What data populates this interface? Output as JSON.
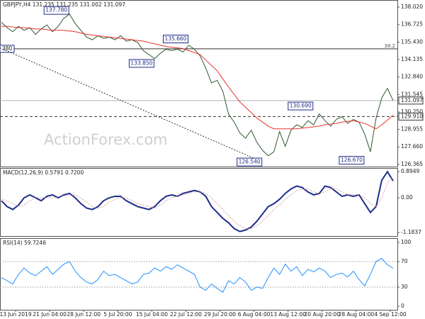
{
  "chart_data": [
    {
      "type": "line",
      "title": "GBPJPY,H4  131.235 131.235 131.002 131.097",
      "watermark": "ActionForex.com",
      "xlim": [
        -0.25,
        69.75
      ],
      "ylim": [
        126.2,
        138.55
      ],
      "yticks": [
        {
          "value": 138.02,
          "label": "138.020"
        },
        136.725,
        {
          "value": 135.43,
          "label": "135.430"
        },
        134.135,
        {
          "value": 132.84,
          "label": "132.840"
        },
        131.545,
        {
          "value": 130.25,
          "label": "130.250"
        },
        128.955,
        {
          "value": 127.66,
          "label": "127.660"
        },
        126.365
      ],
      "series": [
        {
          "color": "#2f5a2f",
          "width": 1,
          "style": "solid",
          "values": [
            136.9,
            136.5,
            136.2,
            136.6,
            136.3,
            136.5,
            136.0,
            136.4,
            136.7,
            136.2,
            136.6,
            137.2,
            137.5,
            136.8,
            136.3,
            135.8,
            135.6,
            135.9,
            135.7,
            135.8,
            135.6,
            135.9,
            135.5,
            135.6,
            135.4,
            134.8,
            134.5,
            134.2,
            134.6,
            134.9,
            134.8,
            134.9,
            134.7,
            135.2,
            134.9,
            134.4,
            133.5,
            132.4,
            132.6,
            131.8,
            130.1,
            129.5,
            128.7,
            128.3,
            128.9,
            128.0,
            127.4,
            127.0,
            127.3,
            128.8,
            127.7,
            128.9,
            129.3,
            129.1,
            129.6,
            129.3,
            130.1,
            129.6,
            129.2,
            129.7,
            129.9,
            129.4,
            129.7,
            129.5,
            128.6,
            127.3,
            129.8,
            131.3,
            132.0,
            131.097
          ]
        },
        {
          "color": "#e8322e",
          "width": 1,
          "style": "solid",
          "values": [
            136.6,
            136.6,
            136.55,
            136.5,
            136.5,
            136.45,
            136.4,
            136.4,
            136.35,
            136.3,
            136.3,
            136.3,
            136.25,
            136.2,
            136.1,
            136.0,
            135.95,
            135.9,
            135.85,
            135.8,
            135.75,
            135.7,
            135.65,
            135.6,
            135.55,
            135.5,
            135.4,
            135.3,
            135.2,
            135.1,
            135.05,
            135.0,
            134.95,
            134.8,
            134.65,
            134.5,
            134.1,
            133.7,
            133.3,
            132.7,
            132.1,
            131.55,
            131.0,
            130.6,
            130.2,
            129.8,
            129.5,
            129.2,
            129.0,
            129.0,
            129.0,
            129.0,
            129.0,
            129.05,
            129.1,
            129.15,
            129.2,
            129.3,
            129.35,
            129.4,
            129.5,
            129.55,
            129.6,
            129.5,
            129.4,
            129.2,
            129.0,
            129.3,
            129.65,
            130.0
          ]
        }
      ],
      "levels": [
        {
          "value": 134.93,
          "color": "#333333",
          "style": "solid",
          "label": "38.2",
          "left_label": "380"
        },
        {
          "value": 131.097,
          "color": "#b0b0b0",
          "style": "solid"
        },
        {
          "value": 129.91,
          "color": "#333333",
          "style": "dashed"
        }
      ],
      "price_labels": [
        {
          "value": 131.097,
          "label": "131.097"
        },
        {
          "value": 129.91,
          "label": "129.910"
        }
      ],
      "trendline": {
        "x": [
          -0.25,
          46
        ],
        "y": [
          135.0,
          126.54
        ]
      },
      "annotations": [
        {
          "label": "137.780",
          "value": 137.78,
          "x": 12
        },
        {
          "label": "135.660",
          "value": 135.66,
          "x": 33
        },
        {
          "label": "133.850",
          "value": 133.85,
          "x": 27
        },
        {
          "label": "130.690",
          "value": 130.69,
          "x": 55
        },
        {
          "label": "126.540",
          "value": 126.54,
          "x": 46
        },
        {
          "label": "126.670",
          "value": 126.67,
          "x": 64
        }
      ]
    },
    {
      "type": "line",
      "title": "MACD(12,26,9) 0.5791 0.7200",
      "xlim": [
        -0.25,
        69.75
      ],
      "ylim": [
        -1.305,
        1.016
      ],
      "yticks": [
        0.8949,
        {
          "value": 0,
          "label": "0.00"
        },
        -1.1837
      ],
      "series": [
        {
          "color": "#1f2d8a",
          "width": 2,
          "style": "solid",
          "values": [
            -0.1,
            -0.3,
            -0.4,
            -0.25,
            0.0,
            0.1,
            0.0,
            -0.1,
            0.05,
            0.1,
            0.0,
            0.1,
            0.15,
            0.0,
            -0.2,
            -0.35,
            -0.4,
            -0.3,
            -0.1,
            0.0,
            0.05,
            0.05,
            -0.1,
            -0.2,
            -0.3,
            -0.35,
            -0.4,
            -0.3,
            -0.1,
            0.05,
            0.1,
            0.05,
            0.15,
            0.2,
            0.25,
            0.2,
            0.05,
            -0.3,
            -0.5,
            -0.7,
            -0.85,
            -1.05,
            -1.15,
            -1.1,
            -1.0,
            -0.8,
            -0.55,
            -0.3,
            -0.2,
            -0.05,
            0.15,
            0.3,
            0.4,
            0.35,
            0.2,
            0.1,
            0.15,
            0.4,
            0.35,
            0.2,
            0.05,
            0.1,
            0.05,
            0.1,
            -0.2,
            -0.5,
            -0.3,
            0.6,
            0.89,
            0.5791
          ]
        },
        {
          "color": "#d08a8a",
          "width": 1,
          "style": "dotted",
          "values": [
            -0.05,
            -0.1,
            -0.2,
            -0.3,
            -0.25,
            -0.1,
            0.0,
            0.0,
            0.0,
            0.0,
            0.05,
            0.05,
            0.1,
            0.1,
            0.0,
            -0.15,
            -0.3,
            -0.35,
            -0.3,
            -0.15,
            -0.05,
            0.0,
            0.0,
            -0.1,
            -0.2,
            -0.25,
            -0.3,
            -0.35,
            -0.25,
            -0.1,
            0.0,
            0.05,
            0.1,
            0.15,
            0.2,
            0.2,
            0.15,
            0.0,
            -0.2,
            -0.4,
            -0.6,
            -0.8,
            -0.95,
            -1.05,
            -1.05,
            -0.95,
            -0.8,
            -0.6,
            -0.4,
            -0.25,
            -0.05,
            0.1,
            0.25,
            0.3,
            0.3,
            0.2,
            0.15,
            0.2,
            0.3,
            0.3,
            0.2,
            0.1,
            0.1,
            0.1,
            0.0,
            -0.2,
            -0.3,
            0.0,
            0.5,
            0.72
          ]
        }
      ]
    },
    {
      "type": "line",
      "title": "RSI(14) 59.7246",
      "xlim": [
        -0.25,
        69.75
      ],
      "ylim": [
        -5.5,
        106.7
      ],
      "yticks": [
        100,
        70,
        30,
        0
      ],
      "levels": [
        {
          "value": 70,
          "color": "#999999",
          "style": "dotted"
        },
        {
          "value": 30,
          "color": "#999999",
          "style": "dotted"
        }
      ],
      "series": [
        {
          "color": "#1e90ff",
          "width": 1,
          "style": "solid",
          "values": [
            45,
            40,
            35,
            50,
            60,
            52,
            48,
            55,
            62,
            50,
            58,
            66,
            70,
            55,
            45,
            38,
            35,
            42,
            55,
            48,
            50,
            45,
            40,
            35,
            38,
            50,
            52,
            60,
            55,
            62,
            58,
            65,
            60,
            55,
            50,
            30,
            25,
            35,
            28,
            22,
            40,
            35,
            45,
            38,
            25,
            30,
            28,
            45,
            60,
            50,
            66,
            55,
            62,
            48,
            58,
            54,
            60,
            55,
            45,
            50,
            52,
            46,
            55,
            42,
            32,
            50,
            70,
            75,
            65,
            59.7246
          ]
        }
      ],
      "xticks": [
        {
          "value": 2.5,
          "label": "13 Jun 2019"
        },
        {
          "value": 8.5,
          "label": "21 Jun 04:00"
        },
        {
          "value": 14.5,
          "label": "28 Jun 12:00"
        },
        {
          "value": 20.5,
          "label": "5 Jul 20:00"
        },
        {
          "value": 26.5,
          "label": "15 Jul 04:00"
        },
        {
          "value": 32.5,
          "label": "22 Jul 12:00"
        },
        {
          "value": 38.5,
          "label": "29 Jul 20:00"
        },
        {
          "value": 44.5,
          "label": "6 Aug 04:00"
        },
        {
          "value": 50.5,
          "label": "13 Aug 12:00"
        },
        {
          "value": 56.5,
          "label": "20 Aug 20:00"
        },
        {
          "value": 62.5,
          "label": "28 Aug 04:00"
        },
        {
          "value": 68.5,
          "label": "4 Sep 12:00"
        }
      ]
    }
  ]
}
